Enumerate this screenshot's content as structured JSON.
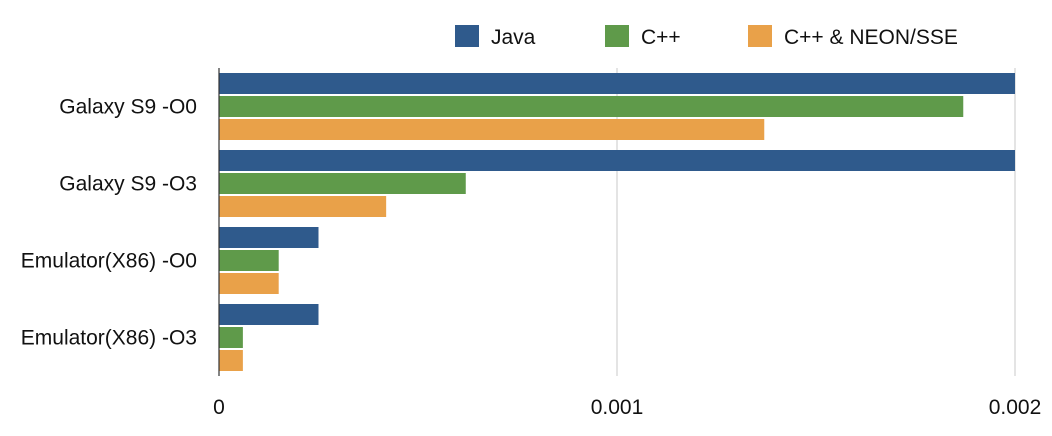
{
  "chart_data": {
    "type": "bar",
    "orientation": "horizontal",
    "title": "",
    "xlabel": "",
    "ylabel": "",
    "categories": [
      "Galaxy S9 -O0",
      "Galaxy S9 -O3",
      "Emulator(X86) -O0",
      "Emulator(X86) -O3"
    ],
    "series": [
      {
        "name": "Java",
        "color": "#2f5a8c",
        "values": [
          0.002,
          0.002,
          0.00025,
          0.00025
        ]
      },
      {
        "name": "C++",
        "color": "#5f9a4a",
        "values": [
          0.00187,
          0.00062,
          0.00015,
          6e-05
        ]
      },
      {
        "name": "C++ & NEON/SSE",
        "color": "#e9a149",
        "values": [
          0.00137,
          0.00042,
          0.00015,
          6e-05
        ]
      }
    ],
    "xlim": [
      0,
      0.002
    ],
    "xticks": [
      {
        "value": 0,
        "label": "0"
      },
      {
        "value": 0.001,
        "label": "0.001"
      },
      {
        "value": 0.002,
        "label": "0.002"
      }
    ],
    "grid": "vertical",
    "legend_position": "top-right"
  }
}
